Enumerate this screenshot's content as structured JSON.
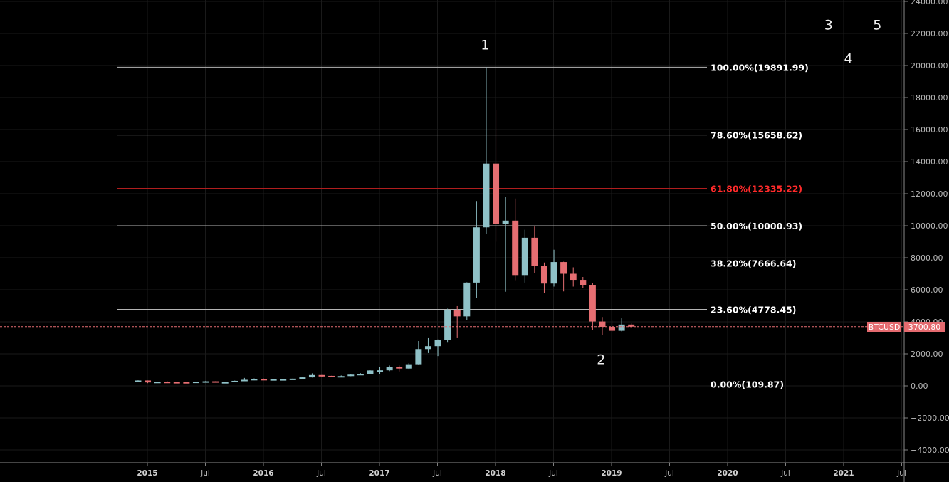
{
  "chart_data": {
    "type": "candlestick",
    "symbol": "BTCUSD",
    "last_price": "3700.80",
    "ylim": [
      -4900,
      24000
    ],
    "y_ticks": [
      24000,
      22000,
      20000,
      18000,
      16000,
      14000,
      12000,
      10000,
      8000,
      6000,
      4000,
      2000,
      0,
      -2000,
      -4000
    ],
    "x_ticks": [
      {
        "label": "2015",
        "t": 2015.0,
        "year": true
      },
      {
        "label": "Jul",
        "t": 2015.5,
        "year": false
      },
      {
        "label": "2016",
        "t": 2016.0,
        "year": true
      },
      {
        "label": "Jul",
        "t": 2016.5,
        "year": false
      },
      {
        "label": "2017",
        "t": 2017.0,
        "year": true
      },
      {
        "label": "Jul",
        "t": 2017.5,
        "year": false
      },
      {
        "label": "2018",
        "t": 2018.0,
        "year": true
      },
      {
        "label": "Jul",
        "t": 2018.5,
        "year": false
      },
      {
        "label": "2019",
        "t": 2019.0,
        "year": true
      },
      {
        "label": "Jul",
        "t": 2019.5,
        "year": false
      },
      {
        "label": "2020",
        "t": 2020.0,
        "year": true
      },
      {
        "label": "Jul",
        "t": 2020.5,
        "year": false
      },
      {
        "label": "2021",
        "t": 2021.0,
        "year": true
      },
      {
        "label": "Jul",
        "t": 2021.5,
        "year": false
      }
    ],
    "fib_levels": [
      {
        "label": "100.00%(19891.99)",
        "value": 19891.99,
        "color": "#b4b4b4",
        "label_color": "#ffffff"
      },
      {
        "label": "78.60%(15658.62)",
        "value": 15658.62,
        "color": "#b4b4b4",
        "label_color": "#ffffff"
      },
      {
        "label": "61.80%(12335.22)",
        "value": 12335.22,
        "color": "#b01e1e",
        "label_color": "#ff2a2a"
      },
      {
        "label": "50.00%(10000.93)",
        "value": 10000.93,
        "color": "#b4b4b4",
        "label_color": "#ffffff"
      },
      {
        "label": "38.20%(7666.64)",
        "value": 7666.64,
        "color": "#b4b4b4",
        "label_color": "#ffffff"
      },
      {
        "label": "23.60%(4778.45)",
        "value": 4778.45,
        "color": "#b4b4b4",
        "label_color": "#ffffff"
      },
      {
        "label": "0.00%(109.87)",
        "value": 109.87,
        "color": "#b4b4b4",
        "label_color": "#ffffff"
      }
    ],
    "wave_labels": [
      {
        "text": "1",
        "t": 2017.91,
        "y": 21000
      },
      {
        "text": "2",
        "t": 2018.91,
        "y": 1350
      },
      {
        "text": "3",
        "t": 2020.87,
        "y": 22250
      },
      {
        "text": "4",
        "t": 2021.04,
        "y": 20150
      },
      {
        "text": "5",
        "t": 2021.29,
        "y": 22250
      }
    ],
    "candle_time_start": 2014.92,
    "candles": [
      {
        "o": 320,
        "h": 350,
        "l": 300,
        "c": 335
      },
      {
        "o": 335,
        "h": 340,
        "l": 170,
        "c": 215
      },
      {
        "o": 215,
        "h": 265,
        "l": 210,
        "c": 255
      },
      {
        "o": 255,
        "h": 300,
        "l": 230,
        "c": 240
      },
      {
        "o": 240,
        "h": 265,
        "l": 210,
        "c": 235
      },
      {
        "o": 235,
        "h": 255,
        "l": 220,
        "c": 230
      },
      {
        "o": 230,
        "h": 265,
        "l": 215,
        "c": 262
      },
      {
        "o": 262,
        "h": 315,
        "l": 250,
        "c": 285
      },
      {
        "o": 285,
        "h": 290,
        "l": 200,
        "c": 230
      },
      {
        "o": 230,
        "h": 245,
        "l": 220,
        "c": 236
      },
      {
        "o": 236,
        "h": 330,
        "l": 235,
        "c": 313
      },
      {
        "o": 313,
        "h": 495,
        "l": 305,
        "c": 378
      },
      {
        "o": 378,
        "h": 465,
        "l": 350,
        "c": 430
      },
      {
        "o": 430,
        "h": 455,
        "l": 350,
        "c": 368
      },
      {
        "o": 368,
        "h": 440,
        "l": 365,
        "c": 415
      },
      {
        "o": 415,
        "h": 430,
        "l": 390,
        "c": 417
      },
      {
        "o": 417,
        "h": 460,
        "l": 410,
        "c": 450
      },
      {
        "o": 450,
        "h": 550,
        "l": 440,
        "c": 530
      },
      {
        "o": 530,
        "h": 780,
        "l": 520,
        "c": 675
      },
      {
        "o": 675,
        "h": 680,
        "l": 580,
        "c": 625
      },
      {
        "o": 625,
        "h": 630,
        "l": 535,
        "c": 575
      },
      {
        "o": 575,
        "h": 650,
        "l": 575,
        "c": 610
      },
      {
        "o": 610,
        "h": 745,
        "l": 600,
        "c": 700
      },
      {
        "o": 700,
        "h": 790,
        "l": 700,
        "c": 745
      },
      {
        "o": 745,
        "h": 970,
        "l": 735,
        "c": 960
      },
      {
        "o": 960,
        "h": 1160,
        "l": 755,
        "c": 970
      },
      {
        "o": 970,
        "h": 1270,
        "l": 920,
        "c": 1190
      },
      {
        "o": 1190,
        "h": 1270,
        "l": 900,
        "c": 1080
      },
      {
        "o": 1080,
        "h": 1420,
        "l": 1060,
        "c": 1350
      },
      {
        "o": 1350,
        "h": 2800,
        "l": 1340,
        "c": 2300
      },
      {
        "o": 2300,
        "h": 2980,
        "l": 2050,
        "c": 2480
      },
      {
        "o": 2480,
        "h": 2900,
        "l": 1860,
        "c": 2860
      },
      {
        "o": 2860,
        "h": 4820,
        "l": 2700,
        "c": 4740
      },
      {
        "o": 4740,
        "h": 4980,
        "l": 2980,
        "c": 4340
      },
      {
        "o": 4340,
        "h": 6470,
        "l": 4100,
        "c": 6450
      },
      {
        "o": 6450,
        "h": 11500,
        "l": 5500,
        "c": 9900
      },
      {
        "o": 9900,
        "h": 19890,
        "l": 9500,
        "c": 13880
      },
      {
        "o": 13880,
        "h": 17200,
        "l": 9000,
        "c": 10090
      },
      {
        "o": 10090,
        "h": 11800,
        "l": 5880,
        "c": 10320
      },
      {
        "o": 10320,
        "h": 11700,
        "l": 6600,
        "c": 6920
      },
      {
        "o": 6920,
        "h": 9750,
        "l": 6450,
        "c": 9250
      },
      {
        "o": 9250,
        "h": 9950,
        "l": 7050,
        "c": 7480
      },
      {
        "o": 7480,
        "h": 7700,
        "l": 5780,
        "c": 6390
      },
      {
        "o": 6390,
        "h": 8500,
        "l": 6200,
        "c": 7730
      },
      {
        "o": 7730,
        "h": 7750,
        "l": 5900,
        "c": 7000
      },
      {
        "o": 7000,
        "h": 7400,
        "l": 6200,
        "c": 6620
      },
      {
        "o": 6620,
        "h": 6800,
        "l": 6100,
        "c": 6300
      },
      {
        "o": 6300,
        "h": 6400,
        "l": 3470,
        "c": 4020
      },
      {
        "o": 4020,
        "h": 4300,
        "l": 3200,
        "c": 3690
      },
      {
        "o": 3690,
        "h": 4080,
        "l": 3350,
        "c": 3440
      },
      {
        "o": 3440,
        "h": 4220,
        "l": 3400,
        "c": 3830
      },
      {
        "o": 3830,
        "h": 3900,
        "l": 3650,
        "c": 3700
      }
    ]
  }
}
